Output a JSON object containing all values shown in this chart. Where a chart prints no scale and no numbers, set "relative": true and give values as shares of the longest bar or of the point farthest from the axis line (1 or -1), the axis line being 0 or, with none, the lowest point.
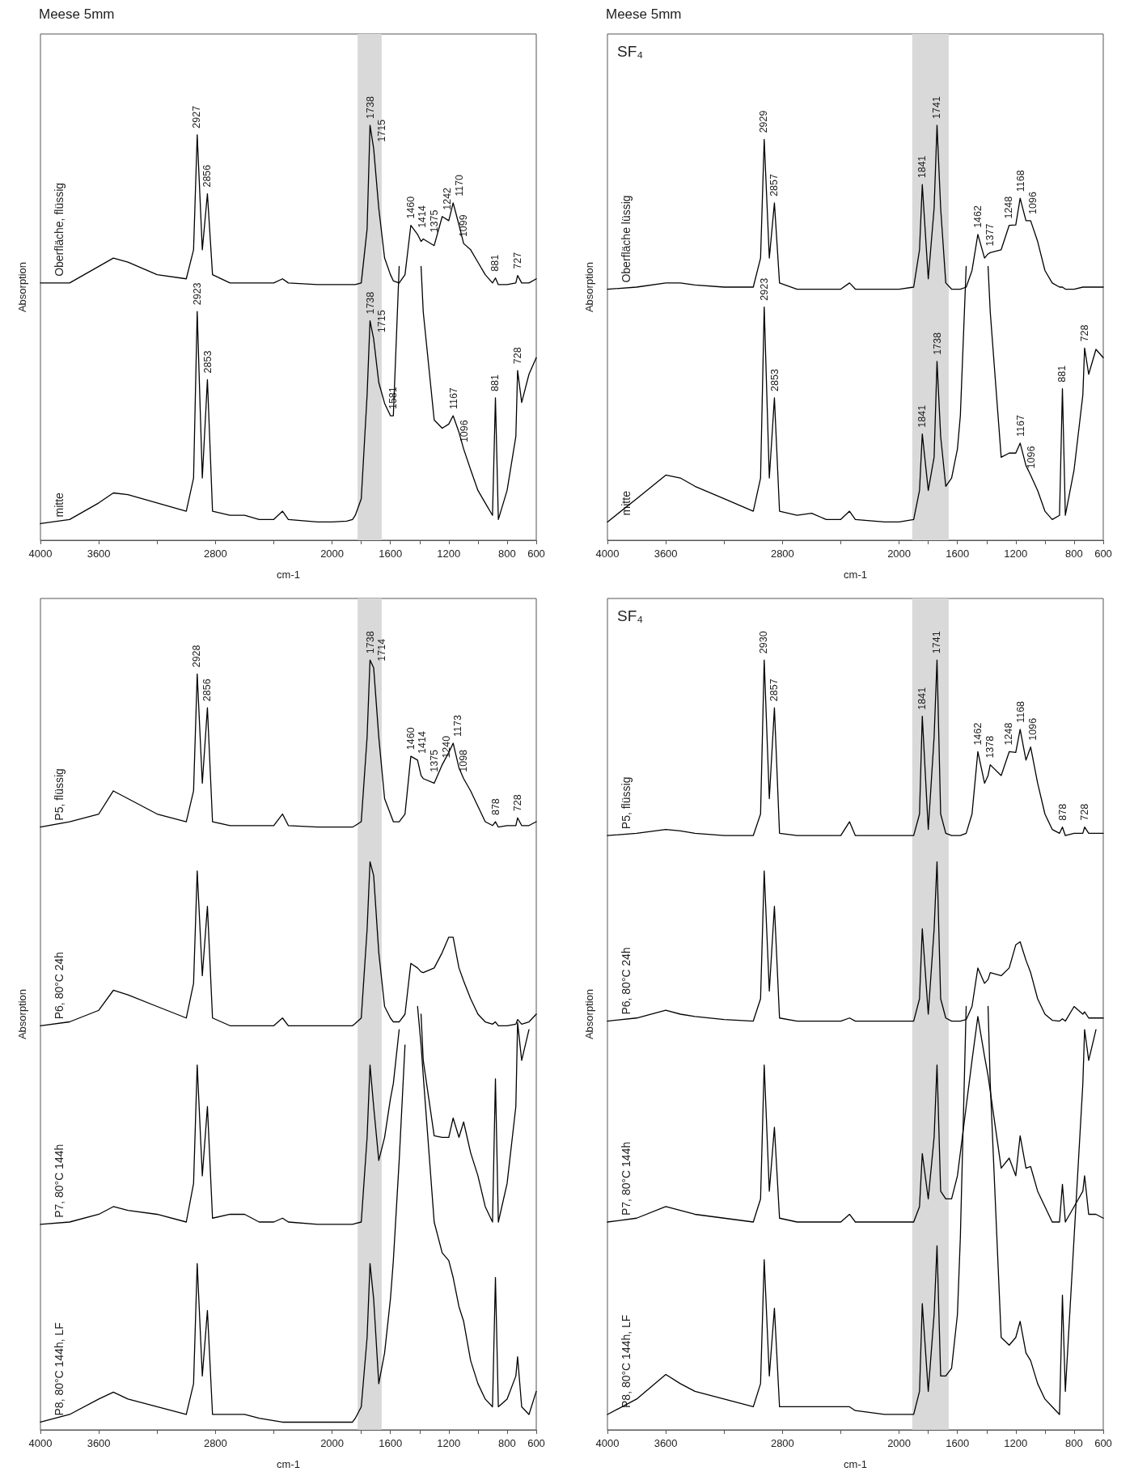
{
  "chart_data": [
    {
      "type": "line",
      "title": "Meese 5mm",
      "xlabel": "cm-1",
      "ylabel": "Absorption",
      "relative": true,
      "tick_labels": "x",
      "xlim": [
        4000,
        600
      ],
      "xticks": [
        4000,
        3600,
        {
          "value": 3200,
          "label": null
        },
        2800,
        {
          "value": 2400,
          "label": null
        },
        2000,
        {
          "value": 1800,
          "label": null
        },
        1600,
        {
          "value": 1400,
          "label": null
        },
        1200,
        {
          "value": 1000,
          "label": null
        },
        800,
        600
      ],
      "bands": [
        {
          "axis": "x",
          "from": 1825,
          "to": 1660,
          "color": "#d9d9d9"
        }
      ],
      "x": [
        4000,
        3800,
        3600,
        3500,
        3400,
        3200,
        3000,
        2950,
        2925,
        2890,
        2855,
        2820,
        2700,
        2600,
        2500,
        2400,
        2340,
        2300,
        2100,
        2000,
        1900,
        1860,
        1841,
        1800,
        1760,
        1740,
        1715,
        1680,
        1640,
        1600,
        1580,
        1540,
        1500,
        1460,
        1414,
        1390,
        1375,
        1300,
        1245,
        1200,
        1170,
        1130,
        1098,
        1050,
        1000,
        950,
        900,
        880,
        860,
        800,
        740,
        728,
        700,
        650,
        600
      ],
      "series": [
        {
          "name": "Oberfläche, flüssig",
          "color": "#000000",
          "values": [
            0.62,
            0.62,
            0.66,
            0.68,
            0.67,
            0.64,
            0.63,
            0.7,
            0.977,
            0.7,
            0.835,
            0.64,
            0.62,
            0.62,
            0.62,
            0.62,
            0.63,
            0.62,
            0.616,
            0.616,
            0.616,
            0.616,
            0.616,
            0.62,
            0.75,
            1.0,
            0.944,
            0.8,
            0.68,
            0.64,
            0.625,
            0.62,
            0.64,
            0.759,
            0.737,
            0.72,
            0.726,
            0.71,
            0.78,
            0.77,
            0.813,
            0.76,
            0.715,
            0.7,
            0.67,
            0.64,
            0.62,
            0.632,
            0.616,
            0.616,
            0.62,
            0.638,
            0.62,
            0.62,
            0.63
          ]
        },
        {
          "name": "mitte",
          "color": "#000000",
          "values": [
            0.04,
            0.05,
            0.09,
            0.114,
            0.11,
            0.09,
            0.07,
            0.15,
            0.551,
            0.15,
            0.387,
            0.07,
            0.06,
            0.06,
            0.05,
            0.05,
            0.07,
            0.05,
            0.044,
            0.044,
            0.046,
            0.05,
            0.06,
            0.1,
            0.35,
            0.529,
            0.485,
            0.38,
            0.33,
            0.3,
            0.3,
            0.66,
            null,
            null,
            null,
            0.66,
            0.55,
            0.29,
            0.27,
            0.28,
            0.3,
            0.26,
            0.22,
            0.17,
            0.12,
            0.09,
            0.06,
            0.343,
            0.05,
            0.12,
            0.25,
            0.409,
            0.332,
            0.4,
            0.44
          ]
        }
      ],
      "annotations": [
        {
          "text": "2927",
          "x": 2927,
          "y": 0.977
        },
        {
          "text": "2856",
          "x": 2856,
          "y": 0.835
        },
        {
          "text": "1738",
          "x": 1738,
          "y": 1.0
        },
        {
          "text": "1715",
          "x": 1715,
          "y": 0.944
        },
        {
          "text": "1460",
          "x": 1460,
          "y": 0.759
        },
        {
          "text": "1414",
          "x": 1414,
          "y": 0.737
        },
        {
          "text": "1375",
          "x": 1375,
          "y": 0.726
        },
        {
          "text": "1242",
          "x": 1242,
          "y": 0.78
        },
        {
          "text": "1170",
          "x": 1170,
          "y": 0.813
        },
        {
          "text": "1099",
          "x": 1099,
          "y": 0.715
        },
        {
          "text": "881",
          "x": 881,
          "y": 0.632
        },
        {
          "text": "727",
          "x": 727,
          "y": 0.638
        },
        {
          "text": "2923",
          "x": 2923,
          "y": 0.551
        },
        {
          "text": "2853",
          "x": 2853,
          "y": 0.387
        },
        {
          "text": "1738",
          "x": 1738,
          "y": 0.529
        },
        {
          "text": "1715",
          "x": 1715,
          "y": 0.485
        },
        {
          "text": "1581",
          "x": 1581,
          "y": 0.3
        },
        {
          "text": "1167",
          "x": 1167,
          "y": 0.3
        },
        {
          "text": "1096",
          "x": 1096,
          "y": 0.22
        },
        {
          "text": "881",
          "x": 881,
          "y": 0.343
        },
        {
          "text": "728",
          "x": 728,
          "y": 0.409
        }
      ]
    },
    {
      "type": "line",
      "title": "Meese 5mm",
      "xlabel": "cm-1",
      "ylabel": "Absorption",
      "relative": true,
      "tick_labels": "x",
      "xlim": [
        4000,
        600
      ],
      "xticks": [
        4000,
        3600,
        {
          "value": 3200,
          "label": null
        },
        2800,
        {
          "value": 2400,
          "label": null
        },
        2000,
        {
          "value": 1800,
          "label": null
        },
        1600,
        {
          "value": 1400,
          "label": null
        },
        1200,
        {
          "value": 1000,
          "label": null
        },
        800,
        600
      ],
      "bands": [
        {
          "axis": "x",
          "from": 1910,
          "to": 1660,
          "color": "#d9d9d9"
        }
      ],
      "x": [
        4000,
        3800,
        3600,
        3500,
        3400,
        3200,
        3000,
        2950,
        2925,
        2890,
        2855,
        2820,
        2700,
        2600,
        2500,
        2400,
        2340,
        2300,
        2100,
        2000,
        1900,
        1860,
        1841,
        1800,
        1760,
        1740,
        1715,
        1680,
        1640,
        1600,
        1580,
        1540,
        1500,
        1460,
        1414,
        1390,
        1375,
        1300,
        1245,
        1200,
        1170,
        1130,
        1098,
        1050,
        1000,
        950,
        900,
        880,
        860,
        800,
        740,
        728,
        700,
        650,
        600
      ],
      "series": [
        {
          "name": "Oberfläche lüssig",
          "color": "#000000",
          "values": [
            0.605,
            0.61,
            0.62,
            0.62,
            0.615,
            0.61,
            0.61,
            0.68,
            0.966,
            0.68,
            0.813,
            0.62,
            0.605,
            0.605,
            0.605,
            0.605,
            0.62,
            0.605,
            0.605,
            0.605,
            0.61,
            0.7,
            0.857,
            0.63,
            0.8,
            1.0,
            0.8,
            0.62,
            0.605,
            0.605,
            0.605,
            0.61,
            0.65,
            0.737,
            0.68,
            0.69,
            0.693,
            0.7,
            0.759,
            0.76,
            0.824,
            0.77,
            0.77,
            0.72,
            0.65,
            0.62,
            0.61,
            0.61,
            0.605,
            0.605,
            0.61,
            0.61,
            0.61,
            0.61,
            0.61
          ]
        },
        {
          "name": "mitte",
          "color": "#000000",
          "values": [
            0.044,
            0.1,
            0.157,
            0.15,
            0.13,
            0.1,
            0.07,
            0.15,
            0.562,
            0.15,
            0.343,
            0.07,
            0.06,
            0.065,
            0.05,
            0.05,
            0.07,
            0.05,
            0.044,
            0.044,
            0.05,
            0.12,
            0.256,
            0.12,
            0.2,
            0.431,
            0.25,
            0.13,
            0.15,
            0.22,
            0.3,
            0.66,
            null,
            null,
            null,
            0.66,
            0.55,
            0.2,
            0.21,
            0.21,
            0.234,
            0.18,
            0.157,
            0.12,
            0.07,
            0.05,
            0.06,
            0.365,
            0.06,
            0.17,
            0.35,
            0.463,
            0.4,
            0.46,
            0.44
          ]
        }
      ],
      "annotations": [
        "SF₄",
        {
          "text": "2929",
          "x": 2929,
          "y": 0.966
        },
        {
          "text": "2857",
          "x": 2857,
          "y": 0.813
        },
        {
          "text": "1841",
          "x": 1841,
          "y": 0.857
        },
        {
          "text": "1741",
          "x": 1741,
          "y": 1.0
        },
        {
          "text": "1462",
          "x": 1462,
          "y": 0.737
        },
        {
          "text": "1377",
          "x": 1377,
          "y": 0.693
        },
        {
          "text": "1248",
          "x": 1248,
          "y": 0.759
        },
        {
          "text": "1168",
          "x": 1168,
          "y": 0.824
        },
        {
          "text": "1096",
          "x": 1096,
          "y": 0.77
        },
        {
          "text": "2923",
          "x": 2923,
          "y": 0.562
        },
        {
          "text": "2853",
          "x": 2853,
          "y": 0.343
        },
        {
          "text": "1841",
          "x": 1841,
          "y": 0.256
        },
        {
          "text": "1738",
          "x": 1738,
          "y": 0.431
        },
        {
          "text": "1167",
          "x": 1167,
          "y": 0.234
        },
        {
          "text": "1096",
          "x": 1096,
          "y": 0.157
        },
        {
          "text": "881",
          "x": 881,
          "y": 0.365
        },
        {
          "text": "728",
          "x": 728,
          "y": 0.463
        }
      ]
    },
    {
      "type": "line",
      "xlabel": "cm-1",
      "ylabel": "Absorption",
      "relative": true,
      "tick_labels": "x",
      "xlim": [
        4000,
        600
      ],
      "xticks": [
        4000,
        3600,
        {
          "value": 3200,
          "label": null
        },
        2800,
        {
          "value": 2400,
          "label": null
        },
        2000,
        {
          "value": 1800,
          "label": null
        },
        1600,
        {
          "value": 1400,
          "label": null
        },
        1200,
        {
          "value": 1000,
          "label": null
        },
        800,
        600
      ],
      "bands": [
        {
          "axis": "x",
          "from": 1825,
          "to": 1660,
          "color": "#d9d9d9"
        }
      ],
      "x": [
        4000,
        3800,
        3600,
        3500,
        3400,
        3200,
        3000,
        2950,
        2925,
        2890,
        2855,
        2820,
        2700,
        2600,
        2500,
        2400,
        2340,
        2300,
        2100,
        2000,
        1900,
        1860,
        1841,
        1800,
        1760,
        1740,
        1715,
        1680,
        1640,
        1600,
        1580,
        1540,
        1500,
        1460,
        1414,
        1390,
        1375,
        1300,
        1245,
        1200,
        1170,
        1130,
        1098,
        1050,
        1000,
        950,
        900,
        880,
        860,
        800,
        740,
        728,
        700,
        650,
        600
      ],
      "series": [
        {
          "name": "P5, flüssig",
          "color": "#000000",
          "values": [
            0.783,
            0.79,
            0.8,
            0.83,
            0.82,
            0.8,
            0.79,
            0.83,
            0.982,
            0.84,
            0.938,
            0.79,
            0.785,
            0.785,
            0.785,
            0.785,
            0.8,
            0.785,
            0.783,
            0.783,
            0.783,
            0.783,
            0.785,
            0.79,
            0.9,
            1.0,
            0.99,
            0.9,
            0.82,
            0.8,
            0.79,
            0.79,
            0.8,
            0.875,
            0.87,
            0.85,
            0.846,
            0.84,
            0.864,
            0.88,
            0.892,
            0.86,
            0.846,
            0.83,
            0.81,
            0.79,
            0.785,
            0.79,
            0.783,
            0.785,
            0.785,
            0.795,
            0.785,
            0.785,
            0.79
          ]
        },
        {
          "name": "P6, 80°C 24h",
          "color": "#000000",
          "values": [
            0.525,
            0.53,
            0.545,
            0.571,
            0.565,
            0.55,
            0.535,
            0.58,
            0.726,
            0.59,
            0.68,
            0.535,
            0.525,
            0.525,
            0.525,
            0.525,
            0.535,
            0.525,
            0.525,
            0.525,
            0.525,
            0.525,
            0.528,
            0.535,
            0.65,
            0.738,
            0.72,
            0.62,
            0.55,
            0.535,
            0.53,
            0.53,
            0.54,
            0.606,
            0.6,
            0.595,
            0.594,
            0.6,
            0.62,
            0.64,
            0.64,
            0.6,
            0.583,
            0.56,
            0.54,
            0.53,
            0.527,
            0.53,
            0.525,
            0.525,
            0.527,
            0.533,
            0.527,
            0.53,
            0.54
          ]
        },
        {
          "name": "P7, 80°C 144h",
          "color": "#000000",
          "values": [
            0.267,
            0.27,
            0.28,
            0.29,
            0.285,
            0.28,
            0.27,
            0.32,
            0.474,
            0.33,
            0.42,
            0.275,
            0.28,
            0.28,
            0.27,
            0.27,
            0.275,
            0.27,
            0.267,
            0.267,
            0.267,
            0.267,
            0.268,
            0.27,
            0.38,
            0.474,
            0.42,
            0.35,
            0.38,
            0.43,
            0.45,
            0.52,
            null,
            null,
            null,
            0.54,
            0.48,
            0.382,
            0.38,
            0.38,
            0.405,
            0.38,
            0.4,
            0.36,
            0.33,
            0.29,
            0.27,
            0.456,
            0.27,
            0.32,
            0.42,
            0.529,
            0.48,
            0.52,
            null
          ]
        },
        {
          "name": "P8, 80°C 144h, LF",
          "color": "#000000",
          "values": [
            0.01,
            0.02,
            0.04,
            0.049,
            0.04,
            0.03,
            0.02,
            0.06,
            0.216,
            0.07,
            0.155,
            0.02,
            0.02,
            0.02,
            0.015,
            0.012,
            0.01,
            0.01,
            0.01,
            0.01,
            0.01,
            0.01,
            0.015,
            0.03,
            0.12,
            0.216,
            0.17,
            0.06,
            0.1,
            0.17,
            0.22,
            0.35,
            0.5,
            null,
            0.55,
            0.5,
            0.46,
            0.27,
            0.23,
            0.22,
            0.198,
            0.16,
            0.141,
            0.09,
            0.06,
            0.04,
            0.03,
            0.198,
            0.03,
            0.04,
            0.07,
            0.095,
            0.03,
            0.02,
            0.05
          ]
        }
      ],
      "annotations": [
        {
          "text": "2928",
          "x": 2928,
          "y": 0.982
        },
        {
          "text": "2856",
          "x": 2856,
          "y": 0.938
        },
        {
          "text": "1738",
          "x": 1738,
          "y": 1.0
        },
        {
          "text": "1714",
          "x": 1714,
          "y": 0.99
        },
        {
          "text": "1460",
          "x": 1460,
          "y": 0.875
        },
        {
          "text": "1414",
          "x": 1414,
          "y": 0.87
        },
        {
          "text": "1375",
          "x": 1375,
          "y": 0.846
        },
        {
          "text": "1240",
          "x": 1240,
          "y": 0.864
        },
        {
          "text": "1173",
          "x": 1173,
          "y": 0.892
        },
        {
          "text": "1098",
          "x": 1098,
          "y": 0.846
        },
        {
          "text": "878",
          "x": 878,
          "y": 0.79
        },
        {
          "text": "728",
          "x": 728,
          "y": 0.795
        }
      ]
    },
    {
      "type": "line",
      "xlabel": "cm-1",
      "ylabel": "Absorption",
      "relative": true,
      "tick_labels": "x",
      "xlim": [
        4000,
        600
      ],
      "xticks": [
        4000,
        3600,
        {
          "value": 3200,
          "label": null
        },
        2800,
        {
          "value": 2400,
          "label": null
        },
        2000,
        {
          "value": 1800,
          "label": null
        },
        1600,
        {
          "value": 1400,
          "label": null
        },
        1200,
        {
          "value": 1000,
          "label": null
        },
        800,
        600
      ],
      "bands": [
        {
          "axis": "x",
          "from": 1910,
          "to": 1660,
          "color": "#d9d9d9"
        }
      ],
      "x": [
        4000,
        3800,
        3600,
        3500,
        3400,
        3200,
        3000,
        2950,
        2925,
        2890,
        2855,
        2820,
        2700,
        2600,
        2500,
        2400,
        2340,
        2300,
        2100,
        2000,
        1900,
        1860,
        1841,
        1800,
        1760,
        1740,
        1715,
        1680,
        1640,
        1600,
        1580,
        1540,
        1500,
        1460,
        1414,
        1390,
        1375,
        1300,
        1245,
        1200,
        1170,
        1130,
        1098,
        1050,
        1000,
        950,
        900,
        880,
        860,
        800,
        740,
        728,
        700,
        650,
        600
      ],
      "series": [
        {
          "name": "P5, flüssig",
          "color": "#000000",
          "values": [
            0.772,
            0.775,
            0.78,
            0.778,
            0.775,
            0.772,
            0.772,
            0.8,
            1.0,
            0.82,
            0.938,
            0.775,
            0.772,
            0.772,
            0.772,
            0.772,
            0.79,
            0.772,
            0.772,
            0.772,
            0.772,
            0.8,
            0.927,
            0.78,
            0.9,
            1.0,
            0.8,
            0.775,
            0.772,
            0.772,
            0.772,
            0.775,
            0.8,
            0.881,
            0.84,
            0.85,
            0.864,
            0.85,
            0.881,
            0.88,
            0.91,
            0.87,
            0.887,
            0.84,
            0.8,
            0.78,
            0.775,
            0.783,
            0.772,
            0.775,
            0.775,
            0.783,
            0.775,
            0.775,
            0.775
          ]
        },
        {
          "name": "P6, 80°C 24h",
          "color": "#000000",
          "values": [
            0.531,
            0.535,
            0.545,
            0.54,
            0.537,
            0.533,
            0.531,
            0.56,
            0.726,
            0.57,
            0.68,
            0.535,
            0.531,
            0.531,
            0.531,
            0.531,
            0.535,
            0.531,
            0.531,
            0.531,
            0.531,
            0.56,
            0.651,
            0.54,
            0.65,
            0.738,
            0.56,
            0.535,
            0.531,
            0.531,
            0.531,
            0.533,
            0.55,
            0.6,
            0.58,
            0.585,
            0.594,
            0.59,
            0.6,
            0.63,
            0.634,
            0.61,
            0.594,
            0.56,
            0.54,
            0.532,
            0.531,
            0.534,
            0.531,
            0.55,
            0.54,
            0.543,
            0.535,
            0.535,
            0.535
          ]
        },
        {
          "name": "P7, 80°C 144h",
          "color": "#000000",
          "values": [
            0.27,
            0.275,
            0.29,
            0.285,
            0.28,
            0.275,
            0.27,
            0.3,
            0.474,
            0.31,
            0.393,
            0.275,
            0.27,
            0.27,
            0.27,
            0.27,
            0.28,
            0.27,
            0.27,
            0.27,
            0.27,
            0.29,
            0.359,
            0.3,
            0.38,
            0.474,
            0.31,
            0.3,
            0.3,
            0.33,
            0.36,
            0.42,
            0.48,
            0.537,
            0.485,
            0.46,
            0.44,
            0.34,
            0.353,
            0.33,
            0.382,
            0.34,
            0.342,
            0.31,
            0.29,
            0.27,
            0.27,
            0.319,
            0.27,
            0.29,
            0.31,
            0.33,
            0.28,
            0.28,
            0.275
          ]
        },
        {
          "name": "P8, 80°C 144h, LF",
          "color": "#000000",
          "values": [
            0.02,
            0.04,
            0.072,
            0.06,
            0.05,
            0.04,
            0.03,
            0.06,
            0.221,
            0.07,
            0.158,
            0.03,
            0.03,
            0.03,
            0.03,
            0.03,
            0.03,
            0.025,
            0.02,
            0.02,
            0.02,
            0.05,
            0.164,
            0.05,
            0.15,
            0.239,
            0.07,
            0.07,
            0.08,
            0.15,
            0.25,
            0.55,
            null,
            null,
            null,
            0.55,
            0.45,
            0.12,
            0.11,
            0.12,
            0.141,
            0.1,
            0.09,
            0.06,
            0.04,
            0.03,
            0.02,
            0.175,
            0.05,
            0.25,
            0.45,
            0.52,
            0.48,
            0.52,
            null
          ]
        }
      ],
      "annotations": [
        "SF₄",
        {
          "text": "2930",
          "x": 2930,
          "y": 1.0
        },
        {
          "text": "2857",
          "x": 2857,
          "y": 0.938
        },
        {
          "text": "1841",
          "x": 1841,
          "y": 0.927
        },
        {
          "text": "1741",
          "x": 1741,
          "y": 1.0
        },
        {
          "text": "1462",
          "x": 1462,
          "y": 0.881
        },
        {
          "text": "1378",
          "x": 1378,
          "y": 0.864
        },
        {
          "text": "1248",
          "x": 1248,
          "y": 0.881
        },
        {
          "text": "1168",
          "x": 1168,
          "y": 0.91
        },
        {
          "text": "1096",
          "x": 1096,
          "y": 0.887
        },
        {
          "text": "878",
          "x": 878,
          "y": 0.783
        },
        {
          "text": "728",
          "x": 728,
          "y": 0.783
        }
      ]
    }
  ]
}
